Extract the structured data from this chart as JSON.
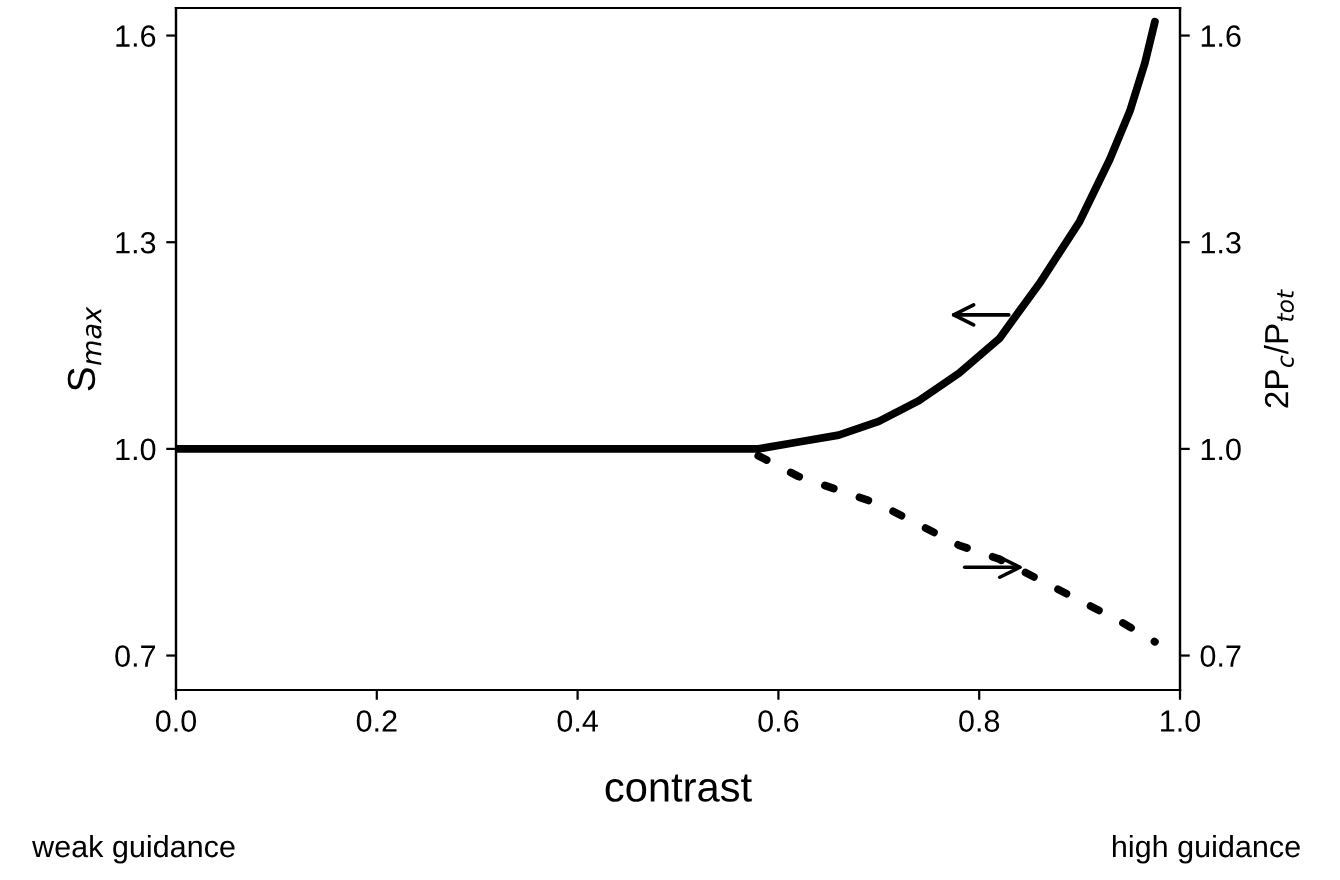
{
  "chart_data": {
    "type": "line",
    "xlabel": "contrast",
    "ylabel": "S$_{max}$",
    "y2label": "2P$_{c}$/P$_{tot}$",
    "annotations": [
      "weak guidance",
      "high guidance"
    ],
    "series": [
      {
        "color": "#000000",
        "line_style": "solid",
        "x": [
          0.0,
          0.1,
          0.2,
          0.3,
          0.4,
          0.5,
          0.58,
          0.62,
          0.66,
          0.7,
          0.74,
          0.78,
          0.82,
          0.86,
          0.9,
          0.93,
          0.95,
          0.965,
          0.975
        ],
        "values": [
          1.0,
          1.0,
          1.0,
          1.0,
          1.0,
          1.0,
          1.0,
          1.01,
          1.02,
          1.04,
          1.07,
          1.11,
          1.16,
          1.24,
          1.33,
          1.42,
          1.49,
          1.56,
          1.62
        ]
      },
      {
        "color": "#000000",
        "line_style": "dashed",
        "axis": "y2",
        "x": [
          0.58,
          0.62,
          0.66,
          0.7,
          0.74,
          0.78,
          0.82,
          0.86,
          0.9,
          0.94,
          0.975
        ],
        "values": [
          0.99,
          0.96,
          0.94,
          0.92,
          0.89,
          0.86,
          0.84,
          0.81,
          0.78,
          0.75,
          0.72
        ]
      }
    ],
    "xlim": [
      0.0,
      1.0
    ],
    "xticks": [
      {
        "value": 0,
        "label": "0.0"
      },
      0.2,
      0.4,
      0.6,
      0.8,
      {
        "value": 1,
        "label": "1.0"
      }
    ],
    "ylim": [
      0.65,
      1.64
    ],
    "yticks": [
      0.7,
      {
        "value": 1,
        "label": "1.0"
      },
      1.3,
      1.6
    ],
    "y2lim": [
      0.65,
      1.64
    ],
    "y2ticks": [
      0.7,
      {
        "value": 1,
        "label": "1.0"
      },
      1.3,
      1.6
    ],
    "grid": false,
    "legend": false
  }
}
